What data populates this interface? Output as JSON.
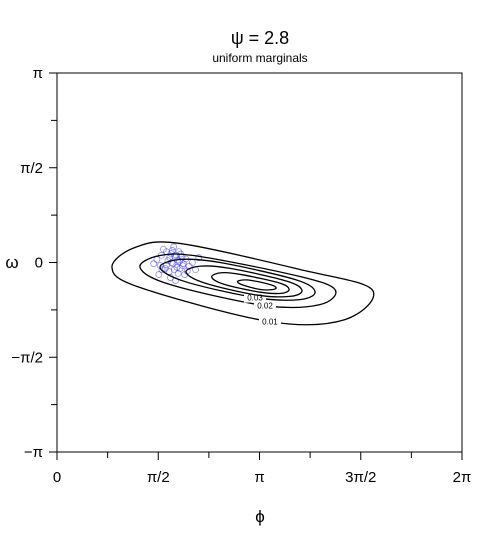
{
  "chart_data": {
    "type": "contour",
    "title": "ψ = 2.8",
    "subtitle": "uniform marginals",
    "x_label": "ϕ",
    "y_label": "ω",
    "xlim": [
      0,
      6.2832
    ],
    "ylim": [
      -3.1416,
      3.1416
    ],
    "xticks": [
      0,
      {
        "value": 1.5708,
        "label": "π/2"
      },
      {
        "value": 3.1416,
        "label": "π"
      },
      {
        "value": 4.7124,
        "label": "3π/2"
      },
      {
        "value": 6.2832,
        "label": "2π"
      }
    ],
    "yticks": [
      {
        "value": -3.1416,
        "label": "−π"
      },
      {
        "value": -1.5708,
        "label": "−π/2"
      },
      0,
      {
        "value": 1.5708,
        "label": "π/2"
      },
      {
        "value": 3.1416,
        "label": "π"
      }
    ],
    "contour_color": "#000000",
    "contours": [
      {
        "level": 0.01,
        "x": [
          0.853,
          1.21,
          1.908,
          3.77,
          4.887,
          4.468,
          3.304,
          1.288
        ],
        "y": [
          -0.083,
          0.249,
          0.316,
          -0.116,
          -0.449,
          -0.947,
          -0.98,
          -0.415
        ]
      },
      {
        "level": 0.02,
        "x": [
          1.288,
          1.598,
          2.218,
          3.77,
          4.313,
          4.08,
          3.227,
          1.753
        ],
        "y": [
          -0.083,
          0.116,
          0.1,
          -0.233,
          -0.449,
          -0.698,
          -0.714,
          -0.365
        ]
      },
      {
        "level": 0.03,
        "x": [
          1.598,
          1.908,
          2.529,
          3.692,
          4.003,
          3.77,
          3.072,
          1.986
        ],
        "y": [
          -0.083,
          0.05,
          0,
          -0.282,
          -0.482,
          -0.615,
          -0.581,
          -0.316
        ]
      },
      {
        "x": [
          2.0,
          2.23,
          2.7,
          3.57,
          3.8,
          3.63,
          3.1,
          2.29
        ],
        "y": [
          -0.16,
          -0.06,
          -0.1,
          -0.31,
          -0.46,
          -0.56,
          -0.54,
          -0.34
        ]
      },
      {
        "x": [
          2.4,
          2.55,
          2.86,
          3.45,
          3.6,
          3.49,
          3.14,
          2.59
        ],
        "y": [
          -0.24,
          -0.17,
          -0.2,
          -0.34,
          -0.44,
          -0.51,
          -0.49,
          -0.36
        ]
      },
      {
        "x": [
          2.8,
          2.88,
          3.03,
          3.32,
          3.4,
          3.34,
          3.17,
          2.9
        ],
        "y": [
          -0.32,
          -0.29,
          -0.3,
          -0.37,
          -0.42,
          -0.45,
          -0.45,
          -0.38
        ]
      }
    ],
    "points": {
      "color": "#0000ff",
      "x": [
        1.55,
        1.62,
        1.7,
        1.75,
        1.8,
        1.83,
        1.86,
        1.9,
        1.95,
        2.0,
        1.68,
        1.74,
        1.78,
        1.82,
        1.88,
        1.92,
        1.98,
        2.05,
        1.6,
        1.65,
        1.72,
        1.79,
        1.85,
        1.91,
        2.1,
        2.15,
        1.5,
        1.58,
        1.76,
        1.81,
        1.87,
        1.94,
        2.02,
        1.7,
        1.84,
        1.77,
        1.89,
        1.96,
        1.63,
        2.2
      ],
      "y": [
        0.05,
        0.12,
        0.18,
        0.08,
        -0.02,
        0.1,
        -0.08,
        0.02,
        -0.05,
        0.06,
        -0.1,
        -0.15,
        0.0,
        -0.12,
        -0.18,
        0.14,
        -0.2,
        -0.06,
        -0.05,
        0.22,
        0.03,
        0.2,
        0.12,
        -0.1,
        0.0,
        -0.12,
        -0.02,
        -0.2,
        -0.25,
        0.26,
        0.04,
        0.1,
        -0.14,
        -0.04,
        -0.3,
        0.15,
        0.18,
        -0.02,
        -0.12,
        0.08
      ]
    }
  }
}
